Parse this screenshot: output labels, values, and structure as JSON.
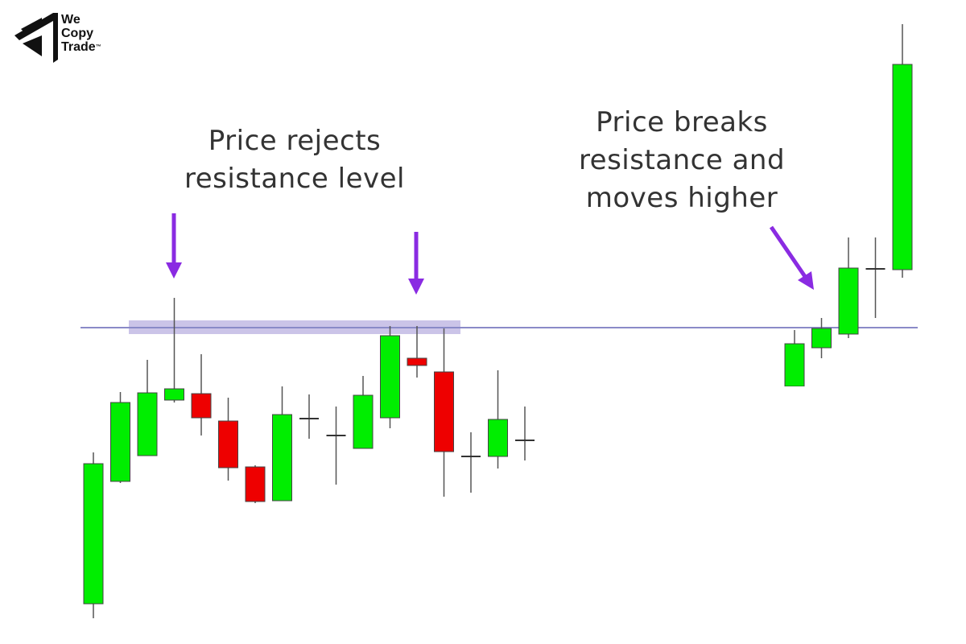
{
  "logo": {
    "line1": "We",
    "line2": "Copy",
    "line3": "Trade",
    "tm": "™"
  },
  "annotations": {
    "left": [
      "Price rejects",
      "resistance level"
    ],
    "right": [
      "Price breaks",
      "resistance and",
      "moves higher"
    ]
  },
  "colors": {
    "bull": "#00ee00",
    "bear": "#ee0000",
    "resistance": "#8a8ac8",
    "zone": "#b9b0e0",
    "arrow": "#8a2be2",
    "text": "#333333"
  },
  "chart_data": {
    "type": "candlestick",
    "title": "",
    "xlabel": "",
    "ylabel": "",
    "axes_visible": false,
    "grid": false,
    "resistance_level": 39.3,
    "candles": [
      {
        "period": 0,
        "open": 5.0,
        "close": 22.4,
        "high": 23.8,
        "low": 3.2
      },
      {
        "period": 1,
        "open": 20.2,
        "close": 30.0,
        "high": 31.3,
        "low": 20.0
      },
      {
        "period": 2,
        "open": 23.4,
        "close": 31.2,
        "high": 35.3,
        "low": 23.4
      },
      {
        "period": 3,
        "open": 30.3,
        "close": 31.7,
        "high": 43.0,
        "low": 30.0
      },
      {
        "period": 4,
        "open": 31.1,
        "close": 28.1,
        "high": 36.0,
        "low": 25.9
      },
      {
        "period": 5,
        "open": 27.7,
        "close": 21.9,
        "high": 30.6,
        "low": 20.3
      },
      {
        "period": 6,
        "open": 22.0,
        "close": 17.7,
        "high": 22.2,
        "low": 17.5
      },
      {
        "period": 7,
        "open": 17.8,
        "close": 28.5,
        "high": 32.0,
        "low": 17.8
      },
      {
        "period": 8,
        "open": 28.0,
        "close": 28.0,
        "high": 31.0,
        "low": 25.5
      },
      {
        "period": 9,
        "open": 25.9,
        "close": 25.9,
        "high": 29.5,
        "low": 19.8
      },
      {
        "period": 10,
        "open": 24.3,
        "close": 30.9,
        "high": 33.3,
        "low": 24.3
      },
      {
        "period": 11,
        "open": 28.1,
        "close": 38.3,
        "high": 39.5,
        "low": 26.8
      },
      {
        "period": 12,
        "open": 35.5,
        "close": 34.6,
        "high": 39.5,
        "low": 33.1
      },
      {
        "period": 13,
        "open": 33.8,
        "close": 23.9,
        "high": 39.2,
        "low": 18.3
      },
      {
        "period": 14,
        "open": 23.3,
        "close": 23.3,
        "high": 26.3,
        "low": 18.8
      },
      {
        "period": 15,
        "open": 23.3,
        "close": 27.9,
        "high": 34.0,
        "low": 21.8
      },
      {
        "period": 16,
        "open": 25.3,
        "close": 25.3,
        "high": 29.5,
        "low": 22.8
      },
      {
        "period": 26,
        "open": 32.0,
        "close": 37.3,
        "high": 39.0,
        "low": 30.0
      },
      {
        "period": 27,
        "open": 36.8,
        "close": 39.2,
        "high": 40.5,
        "low": 35.5
      },
      {
        "period": 28,
        "open": 38.5,
        "close": 46.7,
        "high": 50.5,
        "low": 38.0
      },
      {
        "period": 29,
        "open": 46.6,
        "close": 46.6,
        "high": 50.5,
        "low": 40.5
      },
      {
        "period": 30,
        "open": 46.5,
        "close": 72.0,
        "high": 77.0,
        "low": 45.5
      }
    ]
  }
}
